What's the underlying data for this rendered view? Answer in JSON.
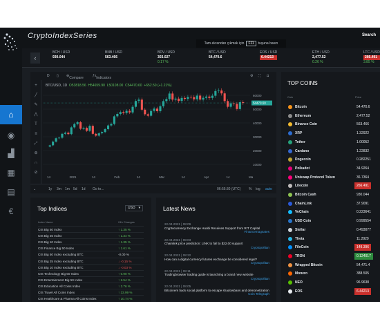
{
  "app": {
    "brand": "CryptoIndexSeries"
  },
  "header": {
    "fullscreen_hint": {
      "prefix": "Tam ekrandan çıkmak için",
      "key": "F11",
      "suffix": "tuşuna basın"
    },
    "search_label": "Search"
  },
  "sidebar": {
    "items": [
      {
        "icon": "home-icon",
        "glyph": "⌂"
      },
      {
        "icon": "coins-icon",
        "glyph": "◉"
      },
      {
        "icon": "chart-icon",
        "glyph": "▟"
      },
      {
        "icon": "dashboard-icon",
        "glyph": "▦"
      },
      {
        "icon": "calculator-icon",
        "glyph": "▤"
      },
      {
        "icon": "euro-icon",
        "glyph": "€"
      }
    ]
  },
  "ticker": [
    {
      "pair": "BCH / USD",
      "price": "930.044",
      "change": "",
      "dir": "up",
      "hl": false
    },
    {
      "pair": "BNB / USD",
      "price": "563.466",
      "change": "",
      "dir": "up",
      "hl": false
    },
    {
      "pair": "BDV / USD",
      "price": "303.027",
      "change": "0.17 %",
      "dir": "up",
      "hl": false
    },
    {
      "pair": "BTC / USD",
      "price": "54,470.6",
      "change": "",
      "dir": "up",
      "hl": false
    },
    {
      "pair": "EOS / USD",
      "price": "6.44213",
      "change": "",
      "dir": "down",
      "hl": true
    },
    {
      "pair": "ETH / USD",
      "price": "2,477.52",
      "change": "0.26 %",
      "dir": "up",
      "hl": false
    },
    {
      "pair": "LTC / USD",
      "price": "266.491",
      "change": "3.85 %",
      "dir": "up",
      "hl": true
    }
  ],
  "chart": {
    "toolbar": {
      "interval": "D",
      "compare": "Compare",
      "indicators": "Indicators"
    },
    "info": {
      "symbol": "BTC/USD, 1D",
      "o": "O53818.56",
      "h": "H54659.90",
      "l": "L50108.00",
      "c": "C54470.60",
      "chg": "+652.50 (+1.21%)"
    },
    "timeframes": [
      "1y",
      "3m",
      "1m",
      "5d",
      "1d",
      "Go to..."
    ],
    "time": "06:55:30 (UTC)",
    "scale_pct": "%",
    "scale_log": "log",
    "scale_auto": "auto"
  },
  "chart_data": {
    "type": "candlestick",
    "title": "BTC/USD, 1D",
    "x_ticks": [
      "14",
      "2021",
      "14",
      "Feb",
      "14",
      "Mar",
      "14",
      "Apr",
      "14",
      "Ma"
    ],
    "y_ticks": [
      60000,
      50000,
      40000,
      30000,
      20000,
      10000
    ],
    "ylim": [
      5000,
      64000
    ],
    "last_price": "54470.60",
    "closes": [
      23800,
      26500,
      28900,
      29300,
      32100,
      33000,
      31900,
      36800,
      39200,
      40500,
      35800,
      36400,
      34300,
      37900,
      32100,
      30800,
      32500,
      33400,
      35500,
      38200,
      39300,
      44800,
      46500,
      47900,
      47200,
      48800,
      47600,
      51700,
      55900,
      56900,
      49600,
      46300,
      45200,
      48700,
      50400,
      48500,
      52100,
      55800,
      57300,
      61300,
      56900,
      57600,
      55900,
      58100,
      57400,
      58800,
      58700,
      57100,
      59800,
      56900,
      58200,
      59100,
      58100,
      59700,
      63100,
      63500,
      61400,
      55800,
      51700,
      54200,
      53800,
      50100,
      55000,
      54470
    ]
  },
  "top_coins": {
    "title": "TOP COINS",
    "head": {
      "coin": "Coin",
      "price": "Price"
    },
    "rows": [
      {
        "name": "Bitcoin",
        "price": "54,470.6",
        "color": "#f7931a",
        "hl": ""
      },
      {
        "name": "Ethereum",
        "price": "2,477.52",
        "color": "#8c8c8c",
        "hl": ""
      },
      {
        "name": "Binance Coin",
        "price": "563.466",
        "color": "#f3ba2f",
        "hl": ""
      },
      {
        "name": "XRP",
        "price": "1.32922",
        "color": "#2c6cd1",
        "hl": ""
      },
      {
        "name": "Tether",
        "price": "1.00052",
        "color": "#26a17b",
        "hl": ""
      },
      {
        "name": "Cardano",
        "price": "1.22832",
        "color": "#3468d1",
        "hl": ""
      },
      {
        "name": "Dogecoin",
        "price": "0.282251",
        "color": "#c2a633",
        "hl": ""
      },
      {
        "name": "Polkadot",
        "price": "34.9264",
        "color": "#e6007a",
        "hl": ""
      },
      {
        "name": "Uniswap Protocol Token",
        "price": "36.7364",
        "color": "#ff007a",
        "hl": ""
      },
      {
        "name": "Litecoin",
        "price": "266.491",
        "color": "#bfbbbb",
        "hl": "red"
      },
      {
        "name": "Bitcoin Cash",
        "price": "930.044",
        "color": "#8dc351",
        "hl": ""
      },
      {
        "name": "ChainLink",
        "price": "37.9091",
        "color": "#2a5ada",
        "hl": ""
      },
      {
        "name": "VeChain",
        "price": "0.223641",
        "color": "#15bdff",
        "hl": ""
      },
      {
        "name": "USD Coin",
        "price": "0.999554",
        "color": "#2775ca",
        "hl": ""
      },
      {
        "name": "Stellar",
        "price": "0.493077",
        "color": "#cfd5db",
        "hl": ""
      },
      {
        "name": "Theta",
        "price": "11.2929",
        "color": "#2ab8e6",
        "hl": ""
      },
      {
        "name": "FileCoin",
        "price": "149.396",
        "color": "#0090ff",
        "hl": "red"
      },
      {
        "name": "TRON",
        "price": "0.124017",
        "color": "#ef0027",
        "hl": "green"
      },
      {
        "name": "Wrapped Bitcoin",
        "price": "54,471.4",
        "color": "#f09242",
        "hl": ""
      },
      {
        "name": "Monero",
        "price": "388.505",
        "color": "#ff6600",
        "hl": ""
      },
      {
        "name": "NEO",
        "price": "96.9638",
        "color": "#58bf00",
        "hl": ""
      },
      {
        "name": "EOS",
        "price": "6.44213",
        "color": "#e8ecf0",
        "hl": "red"
      }
    ]
  },
  "indices": {
    "title": "Top Indices",
    "currency": "USD",
    "head": {
      "name": "Index Name",
      "change": "24h Changes"
    },
    "rows": [
      {
        "name": "CIS Big 50 Index",
        "change": "↑ 1.35 %",
        "dir": "up"
      },
      {
        "name": "CIS Big 25 Index",
        "change": "↑ 1.34 %",
        "dir": "up"
      },
      {
        "name": "CIS Big 10 Index",
        "change": "↑ 1.35 %",
        "dir": "up"
      },
      {
        "name": "CIS Finance Big 50 Index",
        "change": "↑ 1.61 %",
        "dir": "up"
      },
      {
        "name": "CIS Big 50 Index excluding BTC",
        "change": "-0.00 %",
        "dir": "flat"
      },
      {
        "name": "CIS Big 25 Index excluding BTC",
        "change": "↓ -0.15 %",
        "dir": "down"
      },
      {
        "name": "CIS Big 10 Index excluding BTC",
        "change": "↓ -0.03 %",
        "dir": "down"
      },
      {
        "name": "CIS Technology Big 50 Index",
        "change": "↑ 0.90 %",
        "dir": "up"
      },
      {
        "name": "CIS Entertainment Big 50 Index",
        "change": "↑ 2.54 %",
        "dir": "up"
      },
      {
        "name": "CIS Education All Coins Index",
        "change": "↑ 2.76 %",
        "dir": "up"
      },
      {
        "name": "CIS Travel All Coins Index",
        "change": "↑ 33.99 %",
        "dir": "up"
      },
      {
        "name": "CIS Healthcare & Pharma All Coins Index",
        "change": "↑ 10.74 %",
        "dir": "up"
      }
    ]
  },
  "news": {
    "title": "Latest News",
    "items": [
      {
        "date": "22.04.2021 | 08:09",
        "text": "Cryptocurrency Exchange Huobi Receives Support from RIT Capital",
        "source": "Financemagnates"
      },
      {
        "date": "22.04.2021 | 08:03",
        "text": "Chainlink price prediction: LINK to fall to $32.00 support",
        "source": "Cryptopolitan"
      },
      {
        "date": "22.04.2021 | 08:22",
        "text": "How can a digital currency futures exchange be considered legal?",
        "source": "Cryptopolitan"
      },
      {
        "date": "22.04.2021 | 08:11",
        "text": "Tradingbrowser trading guide is launching a brand new website",
        "source": "Cryptopolitan"
      },
      {
        "date": "22.04.2021 | 08:05",
        "text": "Bitcoiners back social platform to escape shadowbans and demonetization",
        "source": "Coin Telegraph"
      }
    ]
  }
}
